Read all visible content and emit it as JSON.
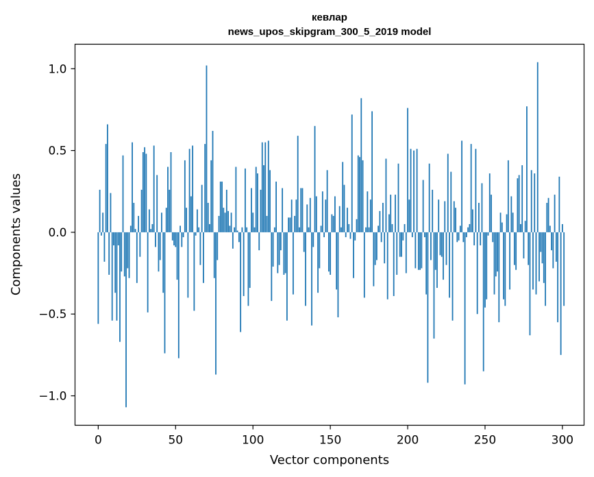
{
  "chart_data": {
    "type": "bar",
    "title": "кевлар",
    "subtitle": "news_upos_skipgram_300_5_2019 model",
    "xlabel": "Vector components",
    "ylabel": "Components values",
    "xlim": [
      -15,
      314
    ],
    "ylim": [
      -1.18,
      1.15
    ],
    "xticks": [
      0,
      50,
      100,
      150,
      200,
      250,
      300
    ],
    "yticks": [
      -1.0,
      -0.5,
      0.0,
      0.5,
      1.0
    ],
    "ytick_labels": [
      "−1.0",
      "−0.5",
      "0.0",
      "0.5",
      "1.0"
    ],
    "grid": false,
    "color": "#1f77b4",
    "values": [
      -0.56,
      0.26,
      -0.02,
      0.12,
      -0.18,
      0.54,
      0.66,
      -0.26,
      0.24,
      -0.54,
      -0.08,
      -0.37,
      -0.54,
      -0.08,
      -0.67,
      -0.24,
      0.47,
      -0.27,
      -1.07,
      -0.22,
      -0.28,
      0.04,
      0.55,
      0.18,
      0.02,
      -0.31,
      0.1,
      -0.15,
      0.26,
      0.49,
      0.52,
      0.48,
      -0.49,
      0.14,
      0.02,
      0.05,
      0.53,
      -0.09,
      0.35,
      -0.24,
      -0.17,
      0.12,
      -0.37,
      -0.74,
      0.15,
      0.4,
      0.26,
      0.49,
      -0.05,
      -0.08,
      -0.09,
      -0.29,
      -0.77,
      0.04,
      -0.09,
      -0.03,
      0.44,
      0.15,
      -0.4,
      0.51,
      0.22,
      0.53,
      -0.48,
      -0.02,
      0.14,
      0.03,
      -0.2,
      0.29,
      -0.31,
      0.54,
      1.02,
      0.18,
      0.05,
      0.44,
      0.62,
      -0.28,
      -0.87,
      -0.17,
      0.1,
      0.31,
      0.31,
      0.15,
      0.12,
      0.26,
      0.13,
      0.04,
      0.12,
      -0.1,
      0.03,
      0.4,
      0.01,
      -0.06,
      -0.61,
      0.03,
      -0.39,
      0.39,
      0.03,
      -0.45,
      -0.34,
      0.27,
      0.12,
      0.03,
      0.4,
      0.36,
      -0.11,
      0.26,
      0.55,
      0.41,
      0.55,
      0.1,
      0.56,
      0.38,
      -0.42,
      -0.21,
      0.03,
      0.31,
      -0.25,
      -0.2,
      -0.11,
      0.27,
      -0.26,
      -0.25,
      -0.54,
      0.09,
      0.09,
      0.2,
      -0.38,
      0.1,
      0.2,
      0.59,
      0.03,
      0.27,
      0.27,
      -0.12,
      -0.45,
      0.17,
      0.03,
      0.21,
      -0.57,
      -0.09,
      0.65,
      0.22,
      -0.37,
      -0.22,
      0.04,
      0.25,
      -0.03,
      0.2,
      0.38,
      -0.24,
      -0.26,
      0.11,
      0.1,
      0.22,
      -0.35,
      -0.52,
      0.16,
      0.03,
      0.43,
      0.29,
      -0.03,
      0.15,
      0.05,
      -0.04,
      0.72,
      -0.28,
      -0.05,
      0.08,
      0.47,
      0.46,
      0.82,
      0.44,
      -0.4,
      0.03,
      0.25,
      0.03,
      0.2,
      0.74,
      -0.33,
      -0.2,
      -0.17,
      0.04,
      0.13,
      -0.06,
      0.18,
      -0.19,
      0.45,
      -0.41,
      0.11,
      0.23,
      0.05,
      -0.39,
      0.23,
      -0.26,
      0.42,
      -0.15,
      -0.15,
      -0.05,
      0.05,
      -0.25,
      0.76,
      0.2,
      0.51,
      -0.03,
      0.5,
      -0.22,
      0.51,
      -0.23,
      -0.23,
      -0.22,
      0.32,
      -0.03,
      -0.38,
      -0.92,
      0.42,
      -0.17,
      0.26,
      -0.65,
      -0.23,
      -0.34,
      0.2,
      -0.14,
      -0.15,
      -0.29,
      0.19,
      -0.2,
      0.48,
      -0.4,
      0.37,
      -0.54,
      0.19,
      0.15,
      -0.06,
      -0.05,
      0.04,
      0.56,
      -0.06,
      -0.93,
      -0.03,
      0.03,
      0.05,
      0.54,
      0.14,
      -0.08,
      0.51,
      -0.5,
      0.18,
      -0.08,
      0.3,
      -0.85,
      -0.46,
      -0.41,
      -0.02,
      0.36,
      0.23,
      -0.06,
      -0.38,
      -0.27,
      -0.24,
      -0.55,
      0.12,
      0.06,
      -0.41,
      -0.45,
      0.11,
      0.44,
      -0.35,
      0.22,
      0.12,
      -0.2,
      -0.23,
      0.33,
      0.35,
      0.05,
      0.41,
      -0.16,
      0.07,
      0.77,
      -0.2,
      -0.63,
      0.38,
      -0.35,
      0.36,
      -0.38,
      1.04,
      -0.3,
      -0.12,
      -0.19,
      -0.31,
      -0.45,
      0.18,
      0.21,
      0.04,
      -0.11,
      -0.22,
      0.23,
      -0.18,
      -0.55,
      0.34,
      -0.75,
      0.05,
      -0.45
    ]
  }
}
